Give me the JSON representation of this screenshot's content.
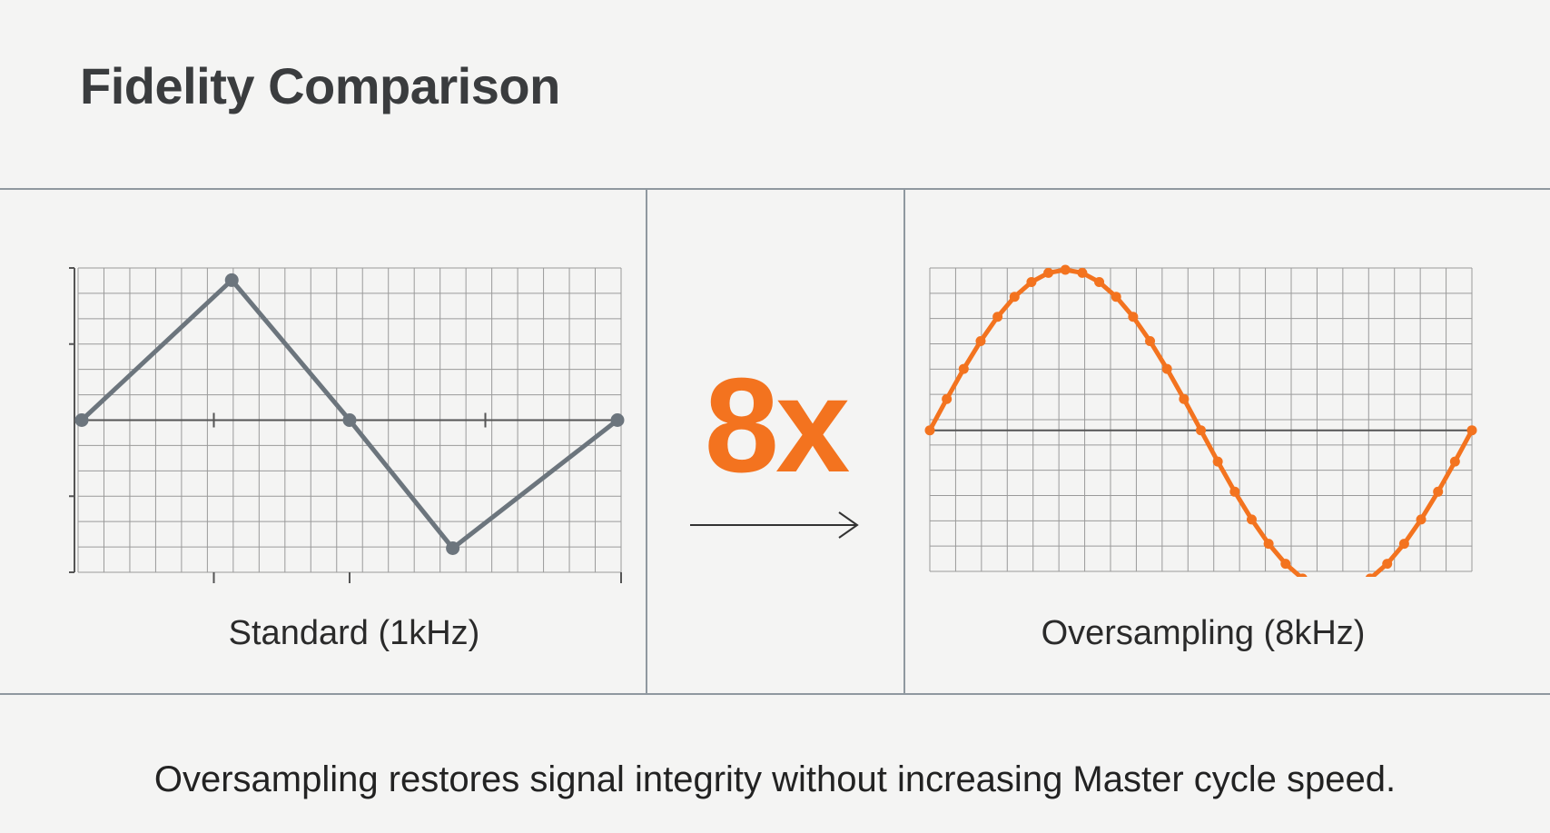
{
  "title": "Fidelity Comparison",
  "panels": {
    "standard": {
      "caption": "Standard (1kHz)",
      "line_color": "#6c757d",
      "points": [
        [
          0,
          0
        ],
        [
          0.25,
          1
        ],
        [
          0.5,
          0
        ],
        [
          0.75,
          -1
        ],
        [
          1,
          0
        ]
      ]
    },
    "oversampled": {
      "caption": "Oversampling (8kHz)",
      "line_color": "#f3731f",
      "samples": 33
    }
  },
  "multiplier": "8x",
  "footer": "Oversampling restores signal integrity without increasing Master cycle speed."
}
